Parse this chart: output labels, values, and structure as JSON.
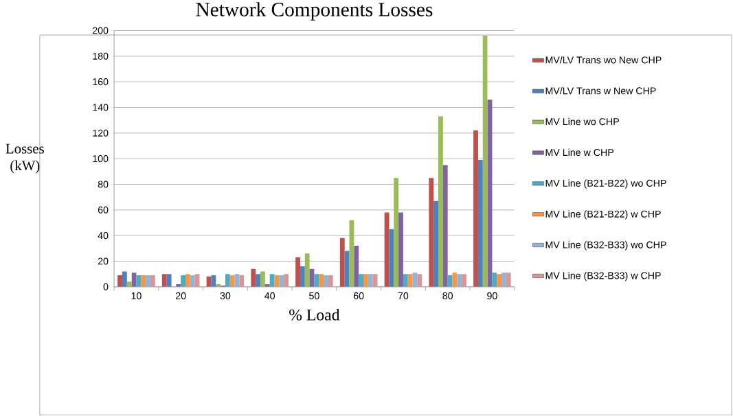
{
  "chart_data": {
    "type": "bar",
    "title": "Network Components Losses",
    "xlabel": "% Load",
    "ylabel": "Losses (kW)",
    "categories": [
      "10",
      "20",
      "30",
      "40",
      "50",
      "60",
      "70",
      "80",
      "90"
    ],
    "series": [
      {
        "name": "MV/LV Trans wo New CHP",
        "color": "#c0504d",
        "values": [
          9,
          10,
          8,
          14,
          23,
          38,
          58,
          85,
          122
        ]
      },
      {
        "name": "MV/LV Trans w New CHP",
        "color": "#4f81bd",
        "values": [
          12,
          10,
          9,
          10,
          16,
          28,
          45,
          67,
          99
        ]
      },
      {
        "name": "MV Line wo CHP",
        "color": "#9bbb59",
        "values": [
          4,
          0,
          2,
          12,
          26,
          52,
          85,
          133,
          196
        ]
      },
      {
        "name": "MV Line w CHP",
        "color": "#8064a2",
        "values": [
          11,
          2,
          1,
          2,
          14,
          32,
          58,
          95,
          146
        ]
      },
      {
        "name": "MV Line (B21-B22) wo CHP",
        "color": "#4bacc6",
        "values": [
          9,
          9,
          10,
          10,
          10,
          10,
          10,
          9,
          11
        ]
      },
      {
        "name": "MV Line (B21-B22) w CHP",
        "color": "#f79646",
        "values": [
          9,
          10,
          9,
          9,
          10,
          10,
          10,
          11,
          10
        ]
      },
      {
        "name": "MV Line (B32-B33) wo CHP",
        "color": "#95b3d7",
        "values": [
          9,
          9,
          10,
          9,
          9,
          10,
          11,
          10,
          11
        ]
      },
      {
        "name": "MV Line (B32-B33) w CHP",
        "color": "#d99694",
        "values": [
          9,
          10,
          9,
          10,
          9,
          10,
          10,
          10,
          11
        ]
      }
    ],
    "ylim": [
      0,
      200
    ],
    "yticks": [
      0,
      20,
      40,
      60,
      80,
      100,
      120,
      140,
      160,
      180,
      200
    ],
    "grid": "y",
    "legend": "right"
  }
}
